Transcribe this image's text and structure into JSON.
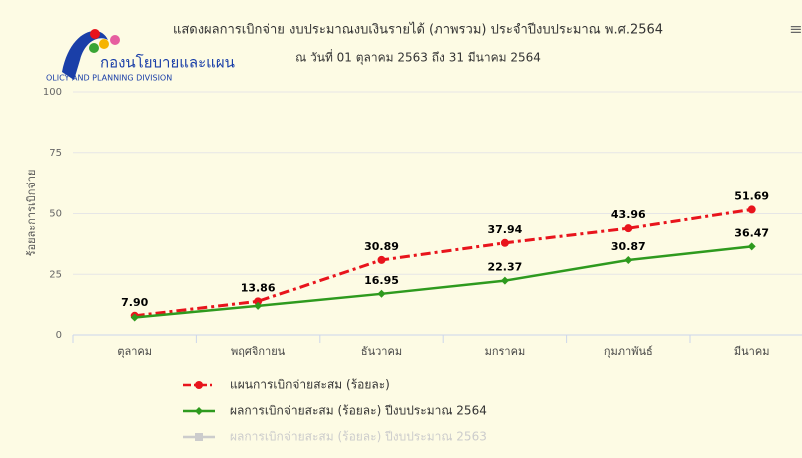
{
  "chart_data": {
    "type": "line",
    "logo_text": "กองนโยบายและแผน",
    "logo_subtext": "OLICY AND PLANNING DIVISION",
    "menu_icon": "≡",
    "title": "แสดงผลการเบิกจ่าย งบประมาณงบเงินรายได้ (ภาพรวม) ประจำปีงบประมาณ พ.ศ.2564",
    "subtitle": "ณ วันที่ 01 ตุลาคม 2563 ถึง 31 มีนาคม 2564",
    "y_label": "ร้อยละการเบิกจ่าย",
    "categories": [
      "ตุลาคม",
      "พฤศจิกายน",
      "ธันวาคม",
      "มกราคม",
      "กุมภาพันธ์",
      "มีนาคม"
    ],
    "series": [
      {
        "name": "แผนการเบิกจ่ายสะสม (ร้อยละ)",
        "color": "#e8141c",
        "marker": "circle",
        "dash": "dashdot",
        "values": [
          7.9,
          13.86,
          30.89,
          37.94,
          43.96,
          51.69
        ],
        "value_labels": [
          "7.90",
          "13.86",
          "30.89",
          "37.94",
          "43.96",
          "51.69"
        ]
      },
      {
        "name": "ผลการเบิกจ่ายสะสม (ร้อยละ) ปีงบประมาณ 2564",
        "color": "#2e9a1e",
        "marker": "diamond",
        "dash": "solid",
        "values": [
          7.2,
          12,
          16.95,
          22.37,
          30.87,
          36.47
        ],
        "value_labels": [
          null,
          null,
          "16.95",
          "22.37",
          "30.87",
          "36.47"
        ]
      },
      {
        "name": "ผลการเบิกจ่ายสะสม (ร้อยละ) ปีงบประมาณ 2563",
        "color": "#cccccc",
        "marker": "square",
        "dash": "solid",
        "hidden": true,
        "values": [
          null,
          null,
          null,
          null,
          null,
          null
        ]
      }
    ],
    "ylim": [
      0,
      100
    ],
    "yticks": [
      0,
      25,
      50,
      75,
      100
    ],
    "grid": true
  }
}
